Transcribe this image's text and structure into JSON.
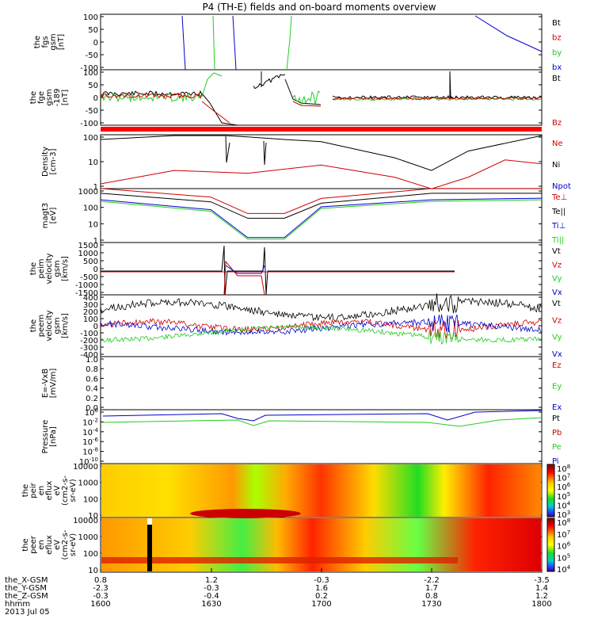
{
  "title": "P4 (TH-E) fields and on-board moments overview",
  "colors": {
    "black": "#000000",
    "red": "#d00000",
    "green": "#22cc22",
    "blue": "#0000cc",
    "flag": "#ff0000"
  },
  "panels": [
    {
      "id": "bfgs",
      "ylabel": [
        "the",
        "fgs",
        "gsm",
        "[nT]"
      ],
      "ticks": [
        "100",
        "50",
        "0",
        "-50",
        "-100"
      ],
      "legend": [
        "Bt",
        "bz",
        "by",
        "bx"
      ],
      "legend_colors": [
        "#000000",
        "#d00000",
        "#22cc22",
        "#0000cc"
      ]
    },
    {
      "id": "bfge",
      "ylabel": [
        "the",
        "fge",
        "gsm",
        "-189",
        "[nT]"
      ],
      "ticks": [
        "100",
        "50",
        "0",
        "-50",
        "-100"
      ],
      "legend": [
        "Bt",
        "Bz"
      ],
      "legend_colors": [
        "#000000",
        "#d00000"
      ]
    },
    {
      "id": "dens",
      "ylabel": [
        "Density",
        "[cm-3]"
      ],
      "ticks": [
        "100",
        "10",
        "1"
      ],
      "legend": [
        "Ne",
        "Ni",
        "Npot"
      ],
      "legend_colors": [
        "#d00000",
        "#000000",
        "#0000cc"
      ]
    },
    {
      "id": "temp",
      "ylabel": [
        "magt3",
        "[eV]"
      ],
      "ticks": [
        "1000",
        "100",
        "10",
        "1"
      ],
      "legend": [
        "Te⊥",
        "Te||",
        "Ti⊥",
        "Ti||"
      ],
      "legend_colors": [
        "#d00000",
        "#000000",
        "#0000cc",
        "#22cc22"
      ]
    },
    {
      "id": "veli",
      "ylabel": [
        "the",
        "peim",
        "velocity",
        "gsm",
        "[km/s]"
      ],
      "ticks": [
        "1500",
        "1000",
        "500",
        "0",
        "-500",
        "-1000",
        "-1500"
      ],
      "legend": [
        "Vt",
        "Vz",
        "Vy",
        "Vx"
      ],
      "legend_colors": [
        "#000000",
        "#d00000",
        "#22cc22",
        "#0000cc"
      ]
    },
    {
      "id": "vele",
      "ylabel": [
        "the",
        "peem",
        "velocity",
        "gsm",
        "[km/s]"
      ],
      "ticks": [
        "400",
        "300",
        "200",
        "100",
        "0",
        "-100",
        "-200",
        "-300",
        "-400"
      ],
      "legend": [
        "Vt",
        "Vz",
        "Vy",
        "Vx"
      ],
      "legend_colors": [
        "#000000",
        "#d00000",
        "#22cc22",
        "#0000cc"
      ]
    },
    {
      "id": "efield",
      "ylabel": [
        "E=-VxB",
        "[mV/m]"
      ],
      "ticks": [
        "1.0",
        "0.8",
        "0.6",
        "0.4",
        "0.2",
        "0.0"
      ],
      "legend": [
        "Ez",
        "Ey",
        "Ex"
      ],
      "legend_colors": [
        "#d00000",
        "#22cc22",
        "#0000cc"
      ]
    },
    {
      "id": "press",
      "ylabel": [
        "Pressure",
        "[nPa]"
      ],
      "ticks": [
        "10^0",
        "10^-2",
        "10^-4",
        "10^-6",
        "10^-8",
        "10^-10"
      ],
      "legend": [
        "Pt",
        "Pb",
        "Pe",
        "Pi"
      ],
      "legend_colors": [
        "#000000",
        "#d00000",
        "#22cc22",
        "#0000cc"
      ]
    },
    {
      "id": "ispec",
      "ylabel": [
        "the",
        "peir",
        "en",
        "eflux",
        "eV",
        "(cm2-s-",
        "sr-eV)"
      ],
      "ticks": [
        "10000",
        "1000",
        "100",
        "10"
      ],
      "colorbar": [
        "10^8",
        "10^7",
        "10^6",
        "10^5",
        "10^4",
        "10^3"
      ]
    },
    {
      "id": "espec",
      "ylabel": [
        "the",
        "peer",
        "en",
        "eflux",
        "eV",
        "(cm2-s-",
        "sr-eV)"
      ],
      "ticks": [
        "10000",
        "1000",
        "100",
        "10"
      ],
      "colorbar": [
        "10^8",
        "10^7",
        "10^6",
        "10^5",
        "10^4"
      ]
    }
  ],
  "ephem": {
    "rows": [
      "the_X-GSM",
      "the_Y-GSM",
      "the_Z-GSM",
      "hhmm",
      "2013 Jul 05"
    ],
    "cols": [
      [
        "0.8",
        "-2.3",
        "-0.3",
        "1600"
      ],
      [
        "1.2",
        "-0.3",
        "-0.4",
        "1630"
      ],
      [
        "-0.3",
        "1.6",
        "0.2",
        "1700"
      ],
      [
        "-2.2",
        "1.7",
        "0.8",
        "1730"
      ],
      [
        "-3.5",
        "1.4",
        "1.2",
        "1800"
      ]
    ]
  },
  "chart_data": {
    "type": "line",
    "title": "P4 (TH-E) fields and on-board moments overview",
    "xlabel": "hhmm",
    "x_ticks": [
      "1600",
      "1630",
      "1700",
      "1730",
      "1800"
    ],
    "xlim": [
      1600,
      1800
    ],
    "series": [
      {
        "panel": "Density",
        "name": "Ni",
        "x": [
          1600,
          1620,
          1634,
          1640,
          1650,
          1700,
          1720,
          1730,
          1740,
          1800
        ],
        "values": [
          100,
          150,
          150,
          130,
          100,
          80,
          15,
          4,
          30,
          150
        ]
      },
      {
        "panel": "Density",
        "name": "Ne",
        "x": [
          1600,
          1620,
          1640,
          1700,
          1720,
          1730,
          1740,
          1750,
          1800
        ],
        "values": [
          1,
          4,
          3,
          7,
          2,
          0.6,
          2,
          12,
          8
        ]
      },
      {
        "panel": "magt3",
        "name": "Te||",
        "x": [
          1600,
          1630,
          1640,
          1650,
          1700,
          1730,
          1800
        ],
        "values": [
          1000,
          300,
          30,
          30,
          250,
          1000,
          1000
        ]
      },
      {
        "panel": "magt3",
        "name": "Ti||",
        "x": [
          1600,
          1630,
          1640,
          1650,
          1700,
          1730,
          1800
        ],
        "values": [
          400,
          100,
          2,
          2,
          150,
          400,
          500
        ]
      }
    ]
  }
}
